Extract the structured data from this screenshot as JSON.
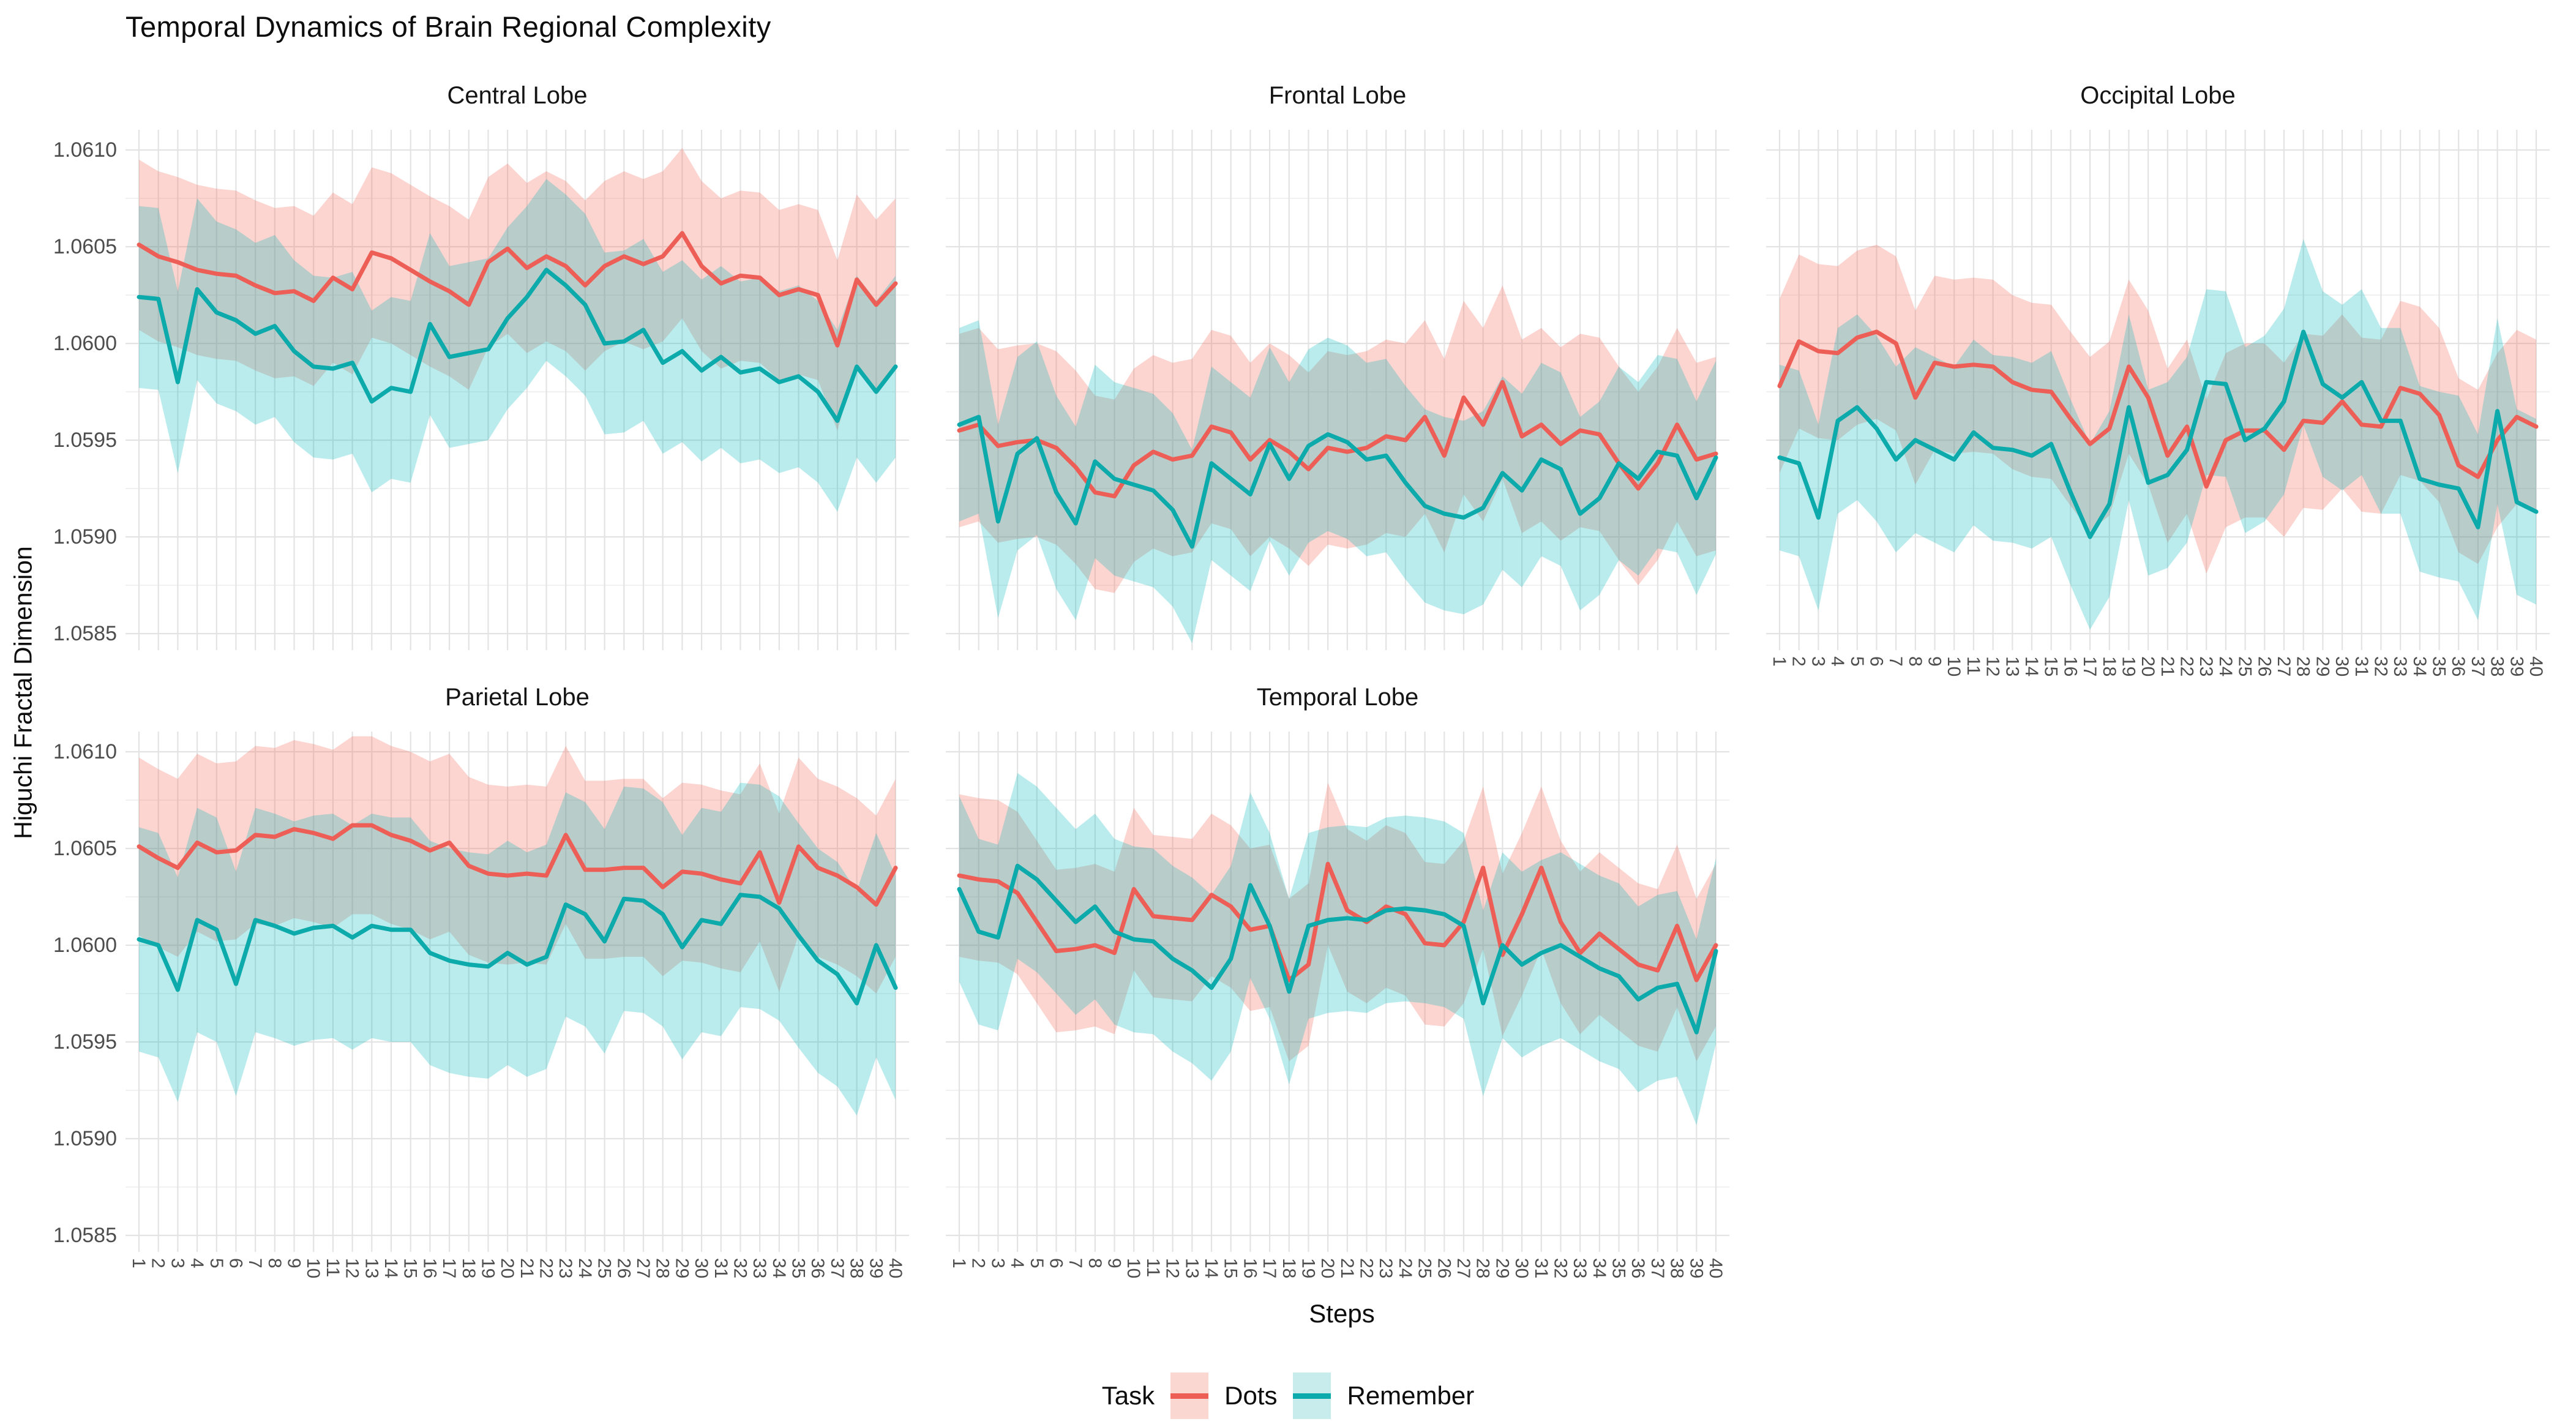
{
  "title": "Temporal Dynamics of Brain Regional Complexity",
  "y_axis": {
    "label": "Higuchi Fractal Dimension",
    "ticks": [
      "1.0610",
      "1.0605",
      "1.0600",
      "1.0595",
      "1.0590",
      "1.0585"
    ]
  },
  "x_axis": {
    "label": "Steps",
    "ticks": [
      "1",
      "2",
      "3",
      "4",
      "5",
      "6",
      "7",
      "8",
      "9",
      "10",
      "11",
      "12",
      "13",
      "14",
      "15",
      "16",
      "17",
      "18",
      "19",
      "20",
      "21",
      "22",
      "23",
      "24",
      "25",
      "26",
      "27",
      "28",
      "29",
      "30",
      "31",
      "32",
      "33",
      "34",
      "35",
      "36",
      "37",
      "38",
      "39",
      "40"
    ]
  },
  "legend": {
    "title": "Task",
    "items": [
      {
        "label": "Dots",
        "line_color": "#ED5E56",
        "fill_color": "#FBD7D2"
      },
      {
        "label": "Remember",
        "line_color": "#0CAAAB",
        "fill_color": "#C8ECEC"
      }
    ]
  },
  "colors": {
    "dots_line": "#ED5E56",
    "dots_ribbon": "rgba(246,112,101,0.30)",
    "remember_line": "#0CAAAB",
    "remember_ribbon": "rgba(0,186,190,0.27)",
    "grid_major": "#E3E3E3",
    "grid_minor": "#F1F1F1",
    "tick_text": "#4D4D4D"
  },
  "chart_data": [
    {
      "type": "line",
      "title": "Central Lobe",
      "col": 0,
      "row": 0,
      "show_y_labels": true,
      "show_x_labels": false,
      "xlabel": "Steps",
      "ylabel": "Higuchi Fractal Dimension",
      "ylim": [
        1.0585,
        1.061
      ],
      "x": [
        1,
        2,
        3,
        4,
        5,
        6,
        7,
        8,
        9,
        10,
        11,
        12,
        13,
        14,
        15,
        16,
        17,
        18,
        19,
        20,
        21,
        22,
        23,
        24,
        25,
        26,
        27,
        28,
        29,
        30,
        31,
        32,
        33,
        34,
        35,
        36,
        37,
        38,
        39,
        40
      ],
      "series": [
        {
          "name": "Dots",
          "band": 0.00044,
          "values": [
            1.06051,
            1.06045,
            1.06042,
            1.06038,
            1.06036,
            1.06035,
            1.0603,
            1.06026,
            1.06027,
            1.06022,
            1.06034,
            1.06028,
            1.06047,
            1.06044,
            1.06038,
            1.06032,
            1.06027,
            1.0602,
            1.06042,
            1.06049,
            1.06039,
            1.06045,
            1.0604,
            1.0603,
            1.0604,
            1.06045,
            1.06041,
            1.06045,
            1.06057,
            1.0604,
            1.06031,
            1.06035,
            1.06034,
            1.06025,
            1.06028,
            1.06025,
            1.05999,
            1.06033,
            1.0602,
            1.06031
          ]
        },
        {
          "name": "Remember",
          "band": 0.00047,
          "values": [
            1.06024,
            1.06023,
            1.0598,
            1.06028,
            1.06016,
            1.06012,
            1.06005,
            1.06009,
            1.05996,
            1.05988,
            1.05987,
            1.0599,
            1.0597,
            1.05977,
            1.05975,
            1.0601,
            1.05993,
            1.05995,
            1.05997,
            1.06013,
            1.06024,
            1.06038,
            1.0603,
            1.0602,
            1.06,
            1.06001,
            1.06007,
            1.0599,
            1.05996,
            1.05986,
            1.05993,
            1.05985,
            1.05987,
            1.0598,
            1.05983,
            1.05975,
            1.0596,
            1.05988,
            1.05975,
            1.05988
          ]
        }
      ]
    },
    {
      "type": "line",
      "title": "Frontal Lobe",
      "col": 1,
      "row": 0,
      "show_y_labels": false,
      "show_x_labels": false,
      "xlabel": "Steps",
      "ylabel": "Higuchi Fractal Dimension",
      "ylim": [
        1.0585,
        1.061
      ],
      "x": [
        1,
        2,
        3,
        4,
        5,
        6,
        7,
        8,
        9,
        10,
        11,
        12,
        13,
        14,
        15,
        16,
        17,
        18,
        19,
        20,
        21,
        22,
        23,
        24,
        25,
        26,
        27,
        28,
        29,
        30,
        31,
        32,
        33,
        34,
        35,
        36,
        37,
        38,
        39,
        40
      ],
      "series": [
        {
          "name": "Dots",
          "band": 0.0005,
          "values": [
            1.05955,
            1.05958,
            1.05947,
            1.05949,
            1.0595,
            1.05946,
            1.05936,
            1.05923,
            1.05921,
            1.05937,
            1.05944,
            1.0594,
            1.05942,
            1.05957,
            1.05954,
            1.0594,
            1.0595,
            1.05944,
            1.05935,
            1.05946,
            1.05944,
            1.05946,
            1.05952,
            1.0595,
            1.05962,
            1.05942,
            1.05972,
            1.05958,
            1.0598,
            1.05952,
            1.05958,
            1.05948,
            1.05955,
            1.05953,
            1.05938,
            1.05925,
            1.05938,
            1.05958,
            1.0594,
            1.05943
          ]
        },
        {
          "name": "Remember",
          "band": 0.0005,
          "values": [
            1.05958,
            1.05962,
            1.05908,
            1.05943,
            1.05951,
            1.05923,
            1.05907,
            1.05939,
            1.0593,
            1.05927,
            1.05924,
            1.05914,
            1.05895,
            1.05938,
            1.0593,
            1.05922,
            1.05948,
            1.0593,
            1.05947,
            1.05953,
            1.05949,
            1.0594,
            1.05942,
            1.05928,
            1.05916,
            1.05912,
            1.0591,
            1.05915,
            1.05933,
            1.05924,
            1.0594,
            1.05935,
            1.05912,
            1.0592,
            1.05938,
            1.0593,
            1.05944,
            1.05942,
            1.0592,
            1.05941
          ]
        }
      ]
    },
    {
      "type": "line",
      "title": "Occipital Lobe",
      "col": 2,
      "row": 0,
      "show_y_labels": false,
      "show_x_labels": true,
      "xlabel": "Steps",
      "ylabel": "Higuchi Fractal Dimension",
      "ylim": [
        1.0585,
        1.061
      ],
      "x": [
        1,
        2,
        3,
        4,
        5,
        6,
        7,
        8,
        9,
        10,
        11,
        12,
        13,
        14,
        15,
        16,
        17,
        18,
        19,
        20,
        21,
        22,
        23,
        24,
        25,
        26,
        27,
        28,
        29,
        30,
        31,
        32,
        33,
        34,
        35,
        36,
        37,
        38,
        39,
        40
      ],
      "series": [
        {
          "name": "Dots",
          "band": 0.00045,
          "values": [
            1.05978,
            1.06001,
            1.05996,
            1.05995,
            1.06003,
            1.06006,
            1.06,
            1.05972,
            1.0599,
            1.05988,
            1.05989,
            1.05988,
            1.0598,
            1.05976,
            1.05975,
            1.05961,
            1.05948,
            1.05956,
            1.05988,
            1.05972,
            1.05942,
            1.05957,
            1.05926,
            1.0595,
            1.05955,
            1.05955,
            1.05945,
            1.0596,
            1.05959,
            1.0597,
            1.05958,
            1.05957,
            1.05977,
            1.05974,
            1.05963,
            1.05937,
            1.05931,
            1.0595,
            1.05962,
            1.05957
          ]
        },
        {
          "name": "Remember",
          "band": 0.00048,
          "values": [
            1.05941,
            1.05938,
            1.0591,
            1.0596,
            1.05967,
            1.05956,
            1.0594,
            1.0595,
            1.05945,
            1.0594,
            1.05954,
            1.05946,
            1.05945,
            1.05942,
            1.05948,
            1.05923,
            1.059,
            1.05917,
            1.05967,
            1.05928,
            1.05932,
            1.05945,
            1.0598,
            1.05979,
            1.0595,
            1.05956,
            1.0597,
            1.06006,
            1.05979,
            1.05972,
            1.0598,
            1.0596,
            1.0596,
            1.0593,
            1.05927,
            1.05925,
            1.05905,
            1.05965,
            1.05918,
            1.05913
          ]
        }
      ]
    },
    {
      "type": "line",
      "title": "Parietal Lobe",
      "col": 0,
      "row": 1,
      "show_y_labels": true,
      "show_x_labels": true,
      "xlabel": "Steps",
      "ylabel": "Higuchi Fractal Dimension",
      "ylim": [
        1.0585,
        1.061
      ],
      "x": [
        1,
        2,
        3,
        4,
        5,
        6,
        7,
        8,
        9,
        10,
        11,
        12,
        13,
        14,
        15,
        16,
        17,
        18,
        19,
        20,
        21,
        22,
        23,
        24,
        25,
        26,
        27,
        28,
        29,
        30,
        31,
        32,
        33,
        34,
        35,
        36,
        37,
        38,
        39,
        40
      ],
      "series": [
        {
          "name": "Dots",
          "band": 0.00046,
          "values": [
            1.06051,
            1.06045,
            1.0604,
            1.06053,
            1.06048,
            1.06049,
            1.06057,
            1.06056,
            1.0606,
            1.06058,
            1.06055,
            1.06062,
            1.06062,
            1.06057,
            1.06054,
            1.06049,
            1.06053,
            1.06041,
            1.06037,
            1.06036,
            1.06037,
            1.06036,
            1.06057,
            1.06039,
            1.06039,
            1.0604,
            1.0604,
            1.0603,
            1.06038,
            1.06037,
            1.06034,
            1.06032,
            1.06048,
            1.06022,
            1.06051,
            1.0604,
            1.06036,
            1.0603,
            1.06021,
            1.0604
          ]
        },
        {
          "name": "Remember",
          "band": 0.00058,
          "values": [
            1.06003,
            1.06,
            1.05977,
            1.06013,
            1.06008,
            1.0598,
            1.06013,
            1.0601,
            1.06006,
            1.06009,
            1.0601,
            1.06004,
            1.0601,
            1.06008,
            1.06008,
            1.05996,
            1.05992,
            1.0599,
            1.05989,
            1.05996,
            1.0599,
            1.05994,
            1.06021,
            1.06016,
            1.06002,
            1.06024,
            1.06023,
            1.06016,
            1.05999,
            1.06013,
            1.06011,
            1.06026,
            1.06025,
            1.06019,
            1.06005,
            1.05992,
            1.05985,
            1.0597,
            1.06,
            1.05978
          ]
        }
      ]
    },
    {
      "type": "line",
      "title": "Temporal Lobe",
      "col": 1,
      "row": 1,
      "show_y_labels": false,
      "show_x_labels": true,
      "xlabel": "Steps",
      "ylabel": "Higuchi Fractal Dimension",
      "ylim": [
        1.0585,
        1.061
      ],
      "x": [
        1,
        2,
        3,
        4,
        5,
        6,
        7,
        8,
        9,
        10,
        11,
        12,
        13,
        14,
        15,
        16,
        17,
        18,
        19,
        20,
        21,
        22,
        23,
        24,
        25,
        26,
        27,
        28,
        29,
        30,
        31,
        32,
        33,
        34,
        35,
        36,
        37,
        38,
        39,
        40
      ],
      "series": [
        {
          "name": "Dots",
          "band": 0.00042,
          "values": [
            1.06036,
            1.06034,
            1.06033,
            1.06027,
            1.06012,
            1.05997,
            1.05998,
            1.06,
            1.05996,
            1.06029,
            1.06015,
            1.06014,
            1.06013,
            1.06026,
            1.0602,
            1.06008,
            1.0601,
            1.05982,
            1.0599,
            1.06042,
            1.06018,
            1.06012,
            1.0602,
            1.06016,
            1.06001,
            1.06,
            1.06012,
            1.0604,
            1.05995,
            1.06016,
            1.0604,
            1.06012,
            1.05996,
            1.06006,
            1.05998,
            1.0599,
            1.05987,
            1.0601,
            1.05982,
            1.06
          ]
        },
        {
          "name": "Remember",
          "band": 0.00048,
          "values": [
            1.06029,
            1.06007,
            1.06004,
            1.06041,
            1.06034,
            1.06023,
            1.06012,
            1.0602,
            1.06007,
            1.06003,
            1.06002,
            1.05993,
            1.05987,
            1.05978,
            1.05993,
            1.06031,
            1.0601,
            1.05976,
            1.0601,
            1.06013,
            1.06014,
            1.06013,
            1.06018,
            1.06019,
            1.06018,
            1.06016,
            1.0601,
            1.0597,
            1.06,
            1.0599,
            1.05996,
            1.06,
            1.05994,
            1.05988,
            1.05984,
            1.05972,
            1.05978,
            1.0598,
            1.05955,
            1.05997
          ]
        }
      ]
    }
  ]
}
